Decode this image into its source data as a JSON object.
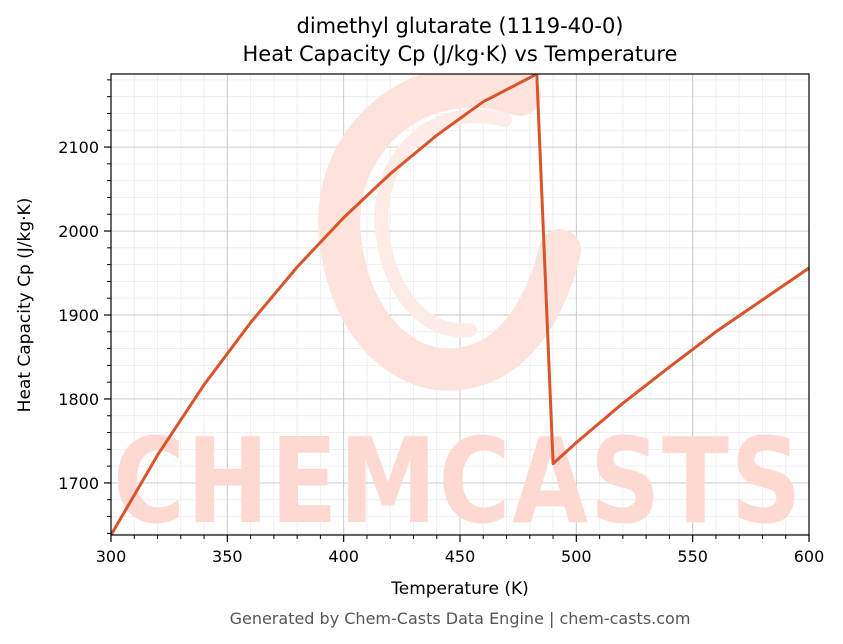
{
  "chart_data": {
    "type": "line",
    "title_line1": "dimethyl glutarate (1119-40-0)",
    "title_line2": "Heat Capacity Cp (J/kg·K) vs Temperature",
    "xlabel": "Temperature (K)",
    "ylabel": "Heat Capacity Cp (J/kg·K)",
    "xlim": [
      300,
      600
    ],
    "ylim": [
      1638,
      2187
    ],
    "x_ticks": [
      300,
      350,
      400,
      450,
      500,
      550,
      600
    ],
    "y_ticks": [
      1700,
      1800,
      1900,
      2000,
      2100
    ],
    "grid": true,
    "series": [
      {
        "color": "#d9542a",
        "x": [
          300,
          320,
          340,
          360,
          380,
          400,
          420,
          440,
          460,
          483,
          490,
          500,
          520,
          540,
          560,
          580,
          600
        ],
        "y": [
          1638,
          1733,
          1817,
          1891,
          1957,
          2016,
          2068,
          2114,
          2154,
          2187,
          1723,
          1748,
          1795,
          1838,
          1880,
          1918,
          1956
        ]
      }
    ]
  },
  "watermark": {
    "text": "CHEMCASTS",
    "color": "#fdd9d2"
  },
  "footer": "Generated by Chem-Casts Data Engine | chem-casts.com"
}
